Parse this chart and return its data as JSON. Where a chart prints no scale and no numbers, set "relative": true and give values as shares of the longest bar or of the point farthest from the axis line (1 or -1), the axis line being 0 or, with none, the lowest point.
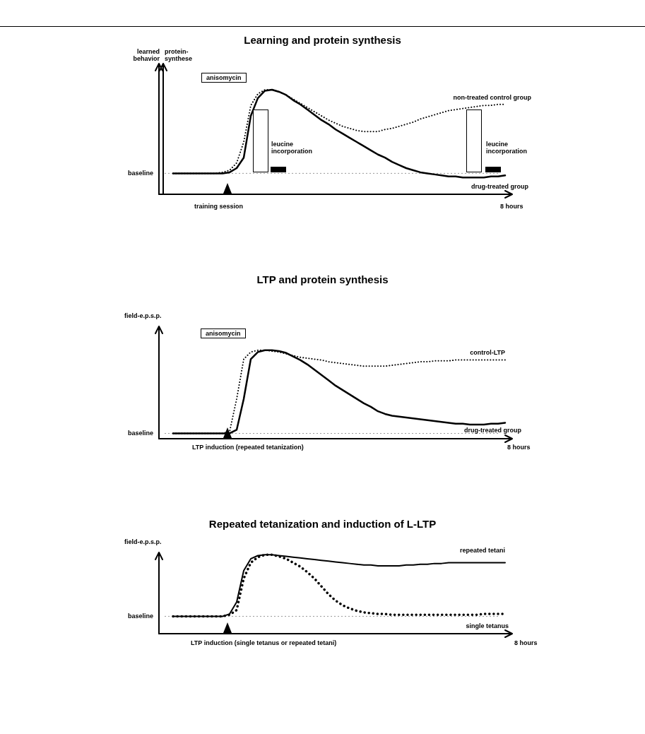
{
  "chart_data": [
    {
      "type": "line",
      "title": "Learning and protein synthesis",
      "ylabel": "learned behavior",
      "y2label": "protein-synthese",
      "relative": true,
      "legend": false,
      "categories": [
        null,
        null,
        null,
        null,
        null,
        null,
        null,
        null,
        null,
        null,
        null,
        null,
        null,
        null,
        null,
        null,
        null,
        null,
        null,
        null,
        null,
        null,
        null,
        null,
        null,
        null,
        null,
        null,
        null,
        null,
        null,
        null,
        null,
        null,
        null,
        null,
        null,
        null,
        null,
        null,
        null,
        null,
        null,
        null,
        null,
        null,
        null,
        null,
        null,
        null,
        null
      ],
      "series": [
        {
          "name": "non-treated control group",
          "color": "#000000",
          "line_style": "dotted",
          "values": [
            null,
            null,
            0.2,
            0.2,
            0.2,
            0.2,
            0.2,
            0.2,
            0.2,
            0.21,
            0.23,
            0.3,
            0.5,
            0.85,
            0.96,
            1,
            1,
            0.98,
            0.95,
            0.91,
            0.87,
            0.83,
            0.79,
            0.75,
            0.71,
            0.68,
            0.65,
            0.63,
            0.61,
            0.6,
            0.6,
            0.6,
            0.62,
            0.63,
            0.65,
            0.67,
            0.69,
            0.72,
            0.74,
            0.76,
            0.78,
            0.8,
            0.81,
            0.82,
            0.83,
            0.84,
            0.85,
            0.85,
            0.86,
            0.86,
            null
          ]
        },
        {
          "name": "drug-treated group",
          "color": "#000000",
          "line_style": "solid",
          "values": [
            null,
            null,
            0.2,
            0.2,
            0.2,
            0.2,
            0.2,
            0.2,
            0.2,
            0.2,
            0.21,
            0.25,
            0.35,
            0.75,
            0.92,
            0.99,
            1,
            0.98,
            0.95,
            0.9,
            0.86,
            0.81,
            0.76,
            0.71,
            0.67,
            0.62,
            0.58,
            0.54,
            0.5,
            0.46,
            0.42,
            0.38,
            0.35,
            0.31,
            0.28,
            0.25,
            0.23,
            0.21,
            0.2,
            0.19,
            0.18,
            0.17,
            0.17,
            0.16,
            0.16,
            0.16,
            0.16,
            0.17,
            0.17,
            0.18,
            null
          ]
        }
      ],
      "ref_lines": [
        {
          "axis": "y",
          "value": 0.2,
          "label": "baseline",
          "color": "#9a9a9a",
          "line_style": "dotted"
        }
      ],
      "annotations": [
        "anisomycin",
        "leucine incorporation",
        "leucine incorporation",
        "training session",
        "8 hours"
      ]
    },
    {
      "type": "line",
      "title": "LTP and protein synthesis",
      "ylabel": "field-e.p.s.p.",
      "relative": true,
      "legend": false,
      "categories": [
        null,
        null,
        null,
        null,
        null,
        null,
        null,
        null,
        null,
        null,
        null,
        null,
        null,
        null,
        null,
        null,
        null,
        null,
        null,
        null,
        null,
        null,
        null,
        null,
        null,
        null,
        null,
        null,
        null,
        null,
        null,
        null,
        null,
        null,
        null,
        null,
        null,
        null,
        null,
        null,
        null,
        null,
        null,
        null,
        null,
        null,
        null,
        null,
        null,
        null,
        null
      ],
      "series": [
        {
          "name": "control-LTP",
          "color": "#000000",
          "line_style": "dotted",
          "values": [
            null,
            null,
            0.06,
            0.06,
            0.06,
            0.06,
            0.06,
            0.06,
            0.06,
            0.06,
            0.08,
            0.45,
            0.9,
            0.98,
            1,
            1,
            0.99,
            0.98,
            0.96,
            0.94,
            0.92,
            0.91,
            0.9,
            0.89,
            0.87,
            0.86,
            0.85,
            0.84,
            0.83,
            0.82,
            0.82,
            0.82,
            0.82,
            0.83,
            0.84,
            0.85,
            0.86,
            0.87,
            0.87,
            0.88,
            0.88,
            0.88,
            0.89,
            0.89,
            0.89,
            0.89,
            0.89,
            0.89,
            0.89,
            0.89,
            null
          ]
        },
        {
          "name": "drug-treated group",
          "color": "#000000",
          "line_style": "solid",
          "values": [
            null,
            null,
            0.06,
            0.06,
            0.06,
            0.06,
            0.06,
            0.06,
            0.06,
            0.06,
            0.06,
            0.1,
            0.45,
            0.9,
            0.98,
            1,
            1,
            0.99,
            0.97,
            0.93,
            0.89,
            0.84,
            0.78,
            0.72,
            0.66,
            0.6,
            0.55,
            0.5,
            0.45,
            0.4,
            0.36,
            0.31,
            0.28,
            0.26,
            0.25,
            0.24,
            0.23,
            0.22,
            0.21,
            0.2,
            0.19,
            0.18,
            0.17,
            0.17,
            0.16,
            0.16,
            0.16,
            0.17,
            0.17,
            0.18,
            null
          ]
        }
      ],
      "ref_lines": [
        {
          "axis": "y",
          "value": 0.06,
          "label": "baseline",
          "color": "#9a9a9a",
          "line_style": "dotted"
        }
      ],
      "annotations": [
        "anisomycin",
        "LTP induction (repeated tetanization)",
        "8 hours"
      ]
    },
    {
      "type": "line",
      "title": "Repeated tetanization and induction of L-LTP",
      "ylabel": "field-e.p.s.p.",
      "relative": true,
      "legend": false,
      "categories": [
        null,
        null,
        null,
        null,
        null,
        null,
        null,
        null,
        null,
        null,
        null,
        null,
        null,
        null,
        null,
        null,
        null,
        null,
        null,
        null,
        null,
        null,
        null,
        null,
        null,
        null,
        null,
        null,
        null,
        null,
        null,
        null,
        null,
        null,
        null,
        null,
        null,
        null,
        null,
        null,
        null,
        null,
        null,
        null,
        null,
        null,
        null,
        null,
        null,
        null,
        null
      ],
      "series": [
        {
          "name": "repeated tetani",
          "color": "#000000",
          "line_style": "solid",
          "values": [
            null,
            null,
            0.22,
            0.22,
            0.22,
            0.22,
            0.22,
            0.22,
            0.22,
            0.22,
            0.25,
            0.4,
            0.8,
            0.95,
            0.99,
            1,
            1,
            0.99,
            0.98,
            0.97,
            0.96,
            0.95,
            0.94,
            0.93,
            0.92,
            0.91,
            0.9,
            0.89,
            0.88,
            0.87,
            0.87,
            0.86,
            0.86,
            0.86,
            0.86,
            0.87,
            0.87,
            0.88,
            0.88,
            0.89,
            0.89,
            0.9,
            0.9,
            0.9,
            0.9,
            0.9,
            0.9,
            0.9,
            0.9,
            0.9,
            null
          ]
        },
        {
          "name": "single tetanus",
          "color": "#000000",
          "line_style": "dotted",
          "values": [
            null,
            null,
            0.22,
            0.22,
            0.22,
            0.22,
            0.22,
            0.22,
            0.22,
            0.22,
            0.24,
            0.3,
            0.7,
            0.9,
            0.97,
            1,
            1,
            0.98,
            0.95,
            0.9,
            0.85,
            0.78,
            0.7,
            0.6,
            0.5,
            0.42,
            0.36,
            0.32,
            0.29,
            0.27,
            0.26,
            0.25,
            0.25,
            0.24,
            0.24,
            0.24,
            0.24,
            0.24,
            0.24,
            0.24,
            0.24,
            0.24,
            0.24,
            0.24,
            0.24,
            0.24,
            0.25,
            0.25,
            0.25,
            0.25,
            null
          ]
        }
      ],
      "ref_lines": [
        {
          "axis": "y",
          "value": 0.22,
          "label": "baseline",
          "color": "#9a9a9a",
          "line_style": "dotted"
        }
      ],
      "annotations": [
        "LTP induction (single tetanus or repeated tetani)",
        "8 hours"
      ]
    }
  ]
}
